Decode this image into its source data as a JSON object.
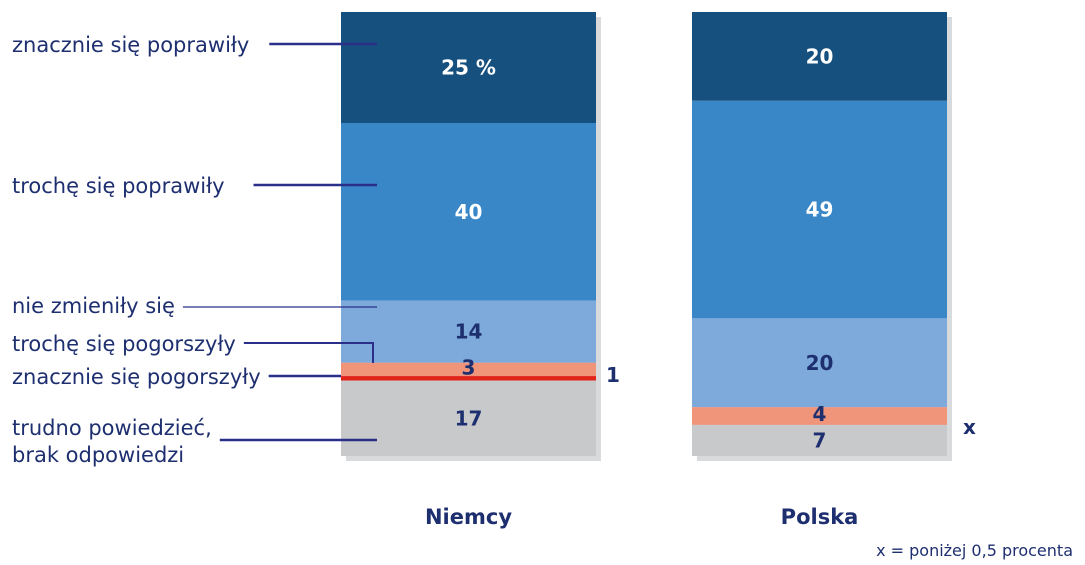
{
  "chart_data": {
    "type": "bar",
    "stacked": true,
    "categories": [
      "Niemcy",
      "Polska"
    ],
    "series": [
      {
        "name": "znacznie się poprawiły",
        "color": "#16507e",
        "values": [
          25,
          20
        ],
        "labels": [
          "25 %",
          "20"
        ],
        "label_color": "#ffffff"
      },
      {
        "name": "trochę się poprawiły",
        "color": "#3a87c8",
        "values": [
          40,
          49
        ],
        "labels": [
          "40",
          "49"
        ],
        "label_color": "#ffffff"
      },
      {
        "name": "nie zmieniły się",
        "color": "#7ea9db",
        "values": [
          14,
          20
        ],
        "labels": [
          "14",
          "20"
        ],
        "label_color": "#1e2f70"
      },
      {
        "name": "trochę się pogorszyły",
        "color": "#f0957a",
        "values": [
          3,
          4
        ],
        "labels": [
          "3",
          "4"
        ],
        "label_color": "#1e2f70"
      },
      {
        "name": "znacznie się pogorszyły",
        "color": "#e2231a",
        "values": [
          1,
          0
        ],
        "labels": [
          "",
          ""
        ],
        "label_color": "#1e2f70"
      },
      {
        "name": "trudno powiedzieć, brak odpowiedzi",
        "color": "#c8c9cb",
        "values": [
          17,
          7
        ],
        "labels": [
          "17",
          "7"
        ],
        "label_color": "#1e2f70"
      }
    ],
    "outside_labels": [
      "1",
      "x"
    ],
    "legend_lines": [
      [
        "znacznie się poprawiły"
      ],
      [
        "trochę się poprawiły"
      ],
      [
        "nie zmieniły się"
      ],
      [
        "trochę się pogorszyły"
      ],
      [
        "znacznie się pogorszyły"
      ],
      [
        "trudno powiedzieć,",
        "brak odpowiedzi"
      ]
    ],
    "footnote": "x = poniżej 0,5 procenta",
    "legend_position": "left",
    "grid": false
  },
  "colors": {
    "text": "#1e2f70",
    "connector": "#2a2f8a",
    "shadow": "#d9dadc"
  }
}
